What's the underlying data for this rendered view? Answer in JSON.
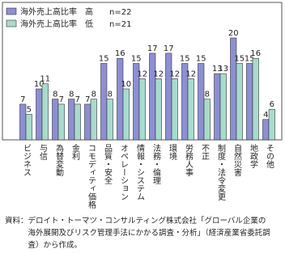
{
  "chart_data": {
    "type": "bar",
    "categories": [
      "ビジネス",
      "与信",
      "為替変動",
      "金利",
      "コモディティ価格",
      "品質・安全",
      "オペレーション",
      "情報・システム",
      "法務・倫理",
      "環境",
      "労務人事",
      "不正",
      "制度・法令変更",
      "自然災害",
      "地政学",
      "その他"
    ],
    "series": [
      {
        "name": "海外売上高比率　高　　n=22",
        "color": "#8e8ed6",
        "values": [
          7,
          10,
          8,
          8,
          7,
          15,
          16,
          15,
          17,
          17,
          15,
          15,
          13,
          20,
          15,
          4
        ]
      },
      {
        "name": "海外売上高比率　低　　n=21",
        "color": "#a6dccb",
        "values": [
          5,
          11,
          7,
          7,
          8,
          8,
          10,
          12,
          12,
          12,
          12,
          8,
          13,
          15,
          16,
          6
        ]
      }
    ],
    "legend": "upper left"
  },
  "source_label": "資料：",
  "source": "デロイト・トーマツ・コンサルティング株式会社「グローバル企業の海外展開及びリスク管理手法にかかる調査・分析」（経済産業省委託調査）から作成。"
}
